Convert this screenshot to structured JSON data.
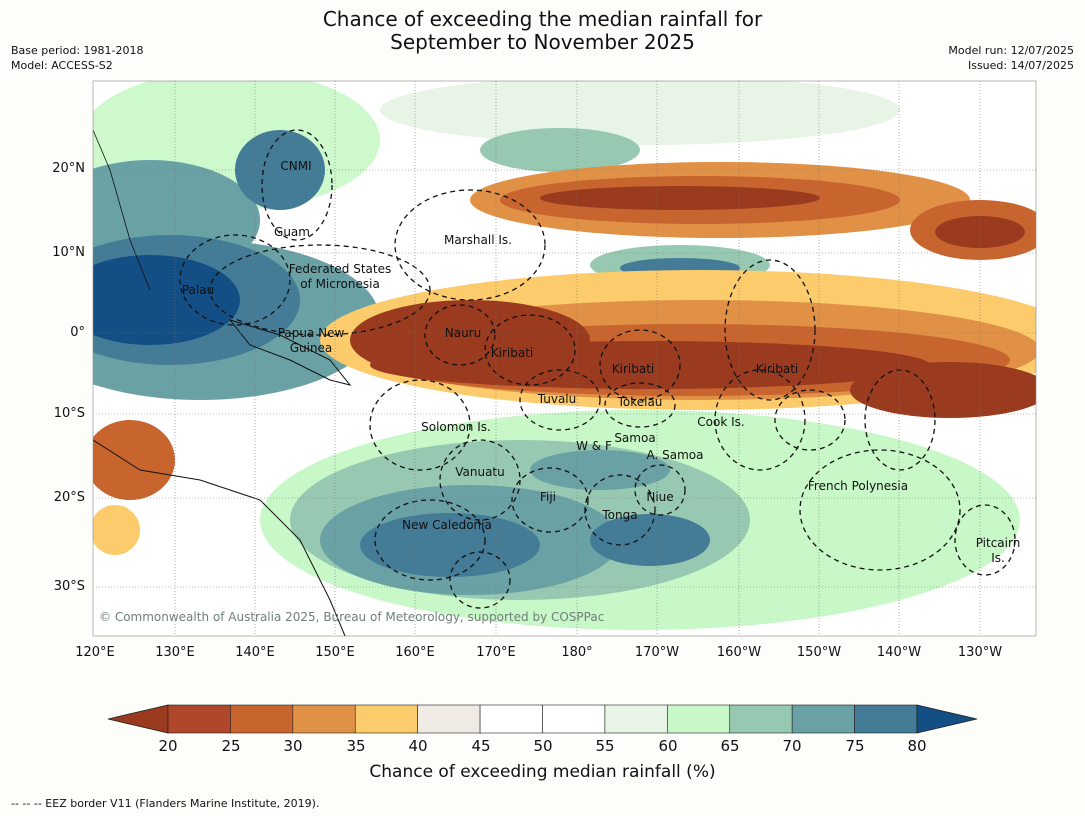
{
  "title": {
    "line1": "Chance of exceeding the median rainfall for",
    "line2": "September to November 2025"
  },
  "meta": {
    "base_period": "Base period: 1981-2018",
    "model": "Model: ACCESS-S2",
    "model_run": "Model run: 12/07/2025",
    "issued": "Issued: 14/07/2025"
  },
  "map": {
    "lat_labels": [
      "20°N",
      "10°N",
      "0°",
      "10°S",
      "20°S",
      "30°S"
    ],
    "lon_labels": [
      "120°E",
      "130°E",
      "140°E",
      "150°E",
      "160°E",
      "170°E",
      "180°",
      "170°W",
      "160°W",
      "150°W",
      "140°W",
      "130°W"
    ],
    "places": [
      "CNMI",
      "Guam",
      "Marshall Is.",
      "Federated States",
      "of Micronesia",
      "Palau",
      "Papua New",
      "Guinea",
      "Nauru",
      "Kiribati",
      "Kiribati",
      "Kiribati",
      "Tuvalu",
      "Tokelau",
      "Solomon Is.",
      "Cook Is.",
      "Samoa",
      "W & F",
      "A. Samoa",
      "Vanuatu",
      "Fiji",
      "Niue",
      "Tonga",
      "French Polynesia",
      "New Caledonia",
      "Pitcairn",
      "Is."
    ],
    "copyright": "© Commonwealth of Australia 2025, Bureau of Meteorology, supported by COSPPac"
  },
  "colorbar": {
    "ticks": [
      "20",
      "25",
      "30",
      "35",
      "40",
      "45",
      "50",
      "55",
      "60",
      "65",
      "70",
      "75",
      "80"
    ],
    "colors": [
      "#9a3a1f",
      "#b0472a",
      "#c8652f",
      "#e09145",
      "#fccb6b",
      "#efebe4",
      "#ffffff",
      "#ffffff",
      "#e8f5e6",
      "#c8f8c8",
      "#97c9b2",
      "#6aa1a5",
      "#447b97",
      "#134e85"
    ],
    "label": "Chance of exceeding median rainfall (%)"
  },
  "footer": "--  --  -- EEZ border V11 (Flanders Marine Institute, 2019)."
}
